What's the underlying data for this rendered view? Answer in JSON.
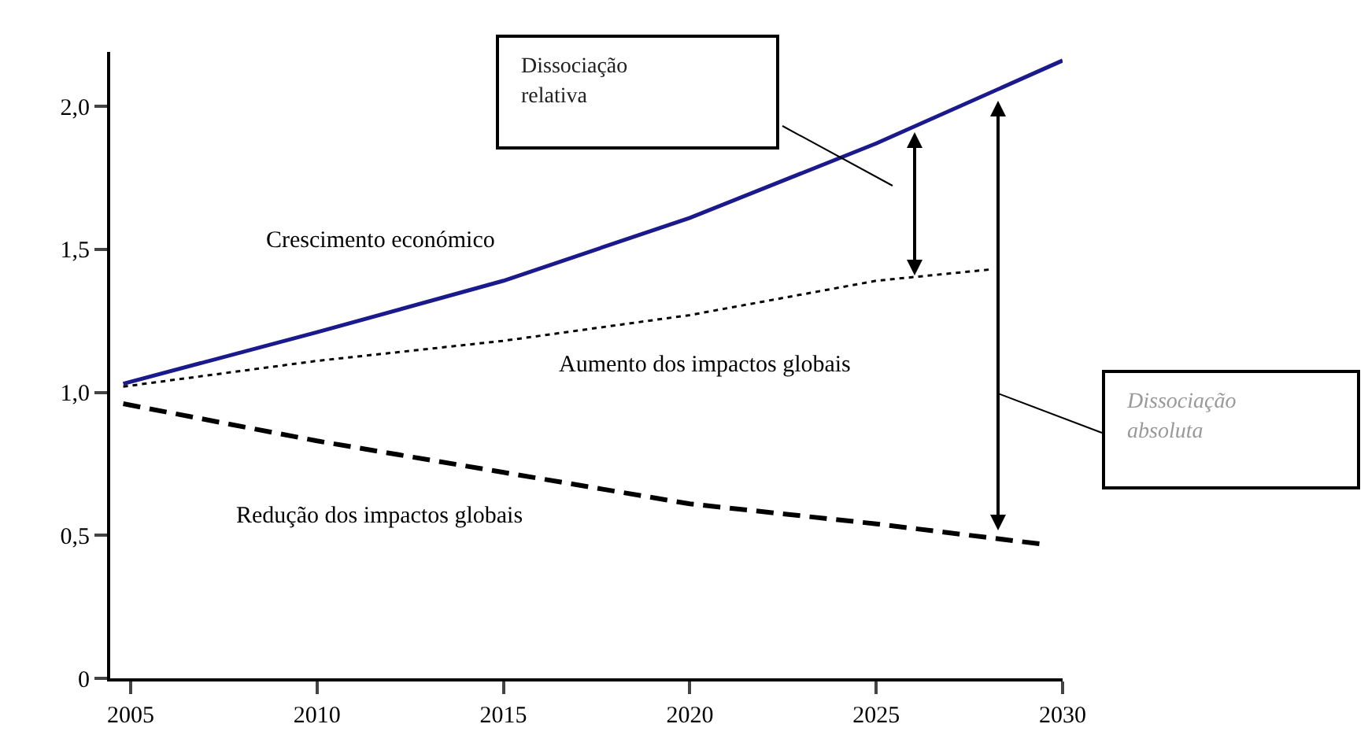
{
  "chart_data": {
    "type": "line",
    "x": [
      2004.8,
      2010,
      2015,
      2020,
      2025,
      2030
    ],
    "series": [
      {
        "name": "Crescimento económico",
        "color": "#1a1a8c",
        "line_style": "solid",
        "values": [
          1.03,
          1.21,
          1.39,
          1.61,
          1.87,
          2.16
        ]
      },
      {
        "name": "Aumento dos impactos globais",
        "color": "#000000",
        "line_style": "dotted",
        "x": [
          2004.8,
          2010,
          2015,
          2020,
          2025,
          2028.1
        ],
        "values": [
          1.02,
          1.11,
          1.18,
          1.27,
          1.39,
          1.43
        ]
      },
      {
        "name": "Redução dos impactos globais",
        "color": "#000000",
        "line_style": "dashed",
        "x": [
          2004.8,
          2010,
          2015,
          2020,
          2025,
          2029.4
        ],
        "values": [
          0.96,
          0.83,
          0.72,
          0.61,
          0.54,
          0.47
        ]
      }
    ],
    "xlim": [
      2004.45,
      2030
    ],
    "xticks": [
      2005,
      2010,
      2015,
      2020,
      2025,
      2030
    ],
    "ylim": [
      0,
      2.19
    ],
    "yticks": [
      0,
      {
        "value": 0.5,
        "label": "0,5"
      },
      {
        "value": 1.0,
        "label": "1,0"
      },
      {
        "value": 1.5,
        "label": "1,5"
      },
      {
        "value": 2.0,
        "label": "2,0"
      }
    ],
    "grid": false,
    "legend": false,
    "marker": "none",
    "annotations": [
      "Dissociação relativa",
      "Dissociação absoluta"
    ]
  }
}
